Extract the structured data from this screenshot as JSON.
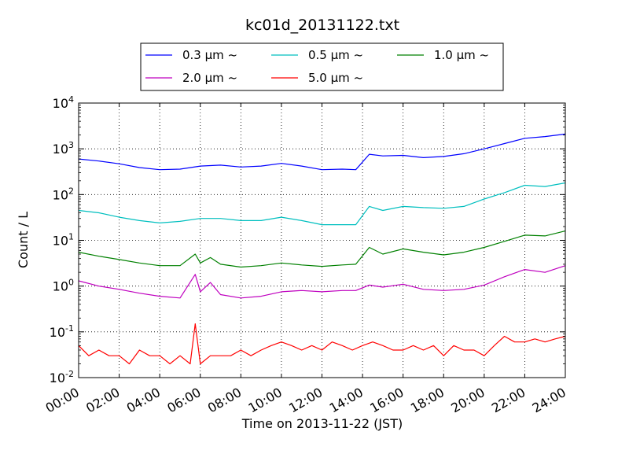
{
  "chart_data": {
    "type": "line",
    "title": "kc01d_20131122.txt",
    "xlabel": "Time on 2013-11-22 (JST)",
    "ylabel": "Count / L",
    "yscale": "log",
    "ylim": [
      0.01,
      10000
    ],
    "xlim": [
      "00:00",
      "24:00"
    ],
    "x_tick_labels": [
      "00:00",
      "02:00",
      "04:00",
      "06:00",
      "08:00",
      "10:00",
      "12:00",
      "14:00",
      "16:00",
      "18:00",
      "20:00",
      "22:00",
      "24:00"
    ],
    "y_tick_labels": [
      {
        "base": "10",
        "exp": "-2"
      },
      {
        "base": "10",
        "exp": "-1"
      },
      {
        "base": "10",
        "exp": "0"
      },
      {
        "base": "10",
        "exp": "1"
      },
      {
        "base": "10",
        "exp": "2"
      },
      {
        "base": "10",
        "exp": "3"
      },
      {
        "base": "10",
        "exp": "4"
      }
    ],
    "grid": true,
    "legend_position": "top-center",
    "series": [
      {
        "name": "0.3 μm ~",
        "color": "#0000ff",
        "x": [
          "00:00",
          "01:00",
          "02:00",
          "03:00",
          "04:00",
          "05:00",
          "06:00",
          "07:00",
          "08:00",
          "09:00",
          "10:00",
          "11:00",
          "12:00",
          "13:00",
          "13:40",
          "14:20",
          "15:00",
          "16:00",
          "17:00",
          "18:00",
          "19:00",
          "20:00",
          "21:00",
          "22:00",
          "23:00",
          "24:00"
        ],
        "values": [
          600,
          540,
          470,
          390,
          350,
          360,
          420,
          440,
          400,
          420,
          480,
          420,
          350,
          360,
          350,
          760,
          700,
          720,
          640,
          680,
          780,
          1000,
          1300,
          1700,
          1850,
          2100
        ]
      },
      {
        "name": "0.5 μm ~",
        "color": "#00bfbf",
        "x": [
          "00:00",
          "01:00",
          "02:00",
          "03:00",
          "04:00",
          "05:00",
          "06:00",
          "07:00",
          "08:00",
          "09:00",
          "10:00",
          "11:00",
          "12:00",
          "13:00",
          "13:40",
          "14:20",
          "15:00",
          "16:00",
          "17:00",
          "18:00",
          "19:00",
          "20:00",
          "21:00",
          "22:00",
          "23:00",
          "24:00"
        ],
        "values": [
          45,
          40,
          32,
          27,
          24,
          26,
          30,
          30,
          27,
          27,
          32,
          27,
          22,
          22,
          22,
          55,
          45,
          55,
          52,
          50,
          55,
          80,
          110,
          160,
          150,
          180
        ]
      },
      {
        "name": "1.0 μm ~",
        "color": "#008000",
        "x": [
          "00:00",
          "01:00",
          "02:00",
          "03:00",
          "04:00",
          "05:00",
          "05:45",
          "06:00",
          "06:30",
          "07:00",
          "08:00",
          "09:00",
          "10:00",
          "11:00",
          "12:00",
          "13:00",
          "13:40",
          "14:20",
          "15:00",
          "16:00",
          "17:00",
          "18:00",
          "19:00",
          "20:00",
          "21:00",
          "22:00",
          "23:00",
          "24:00"
        ],
        "values": [
          5.5,
          4.5,
          3.8,
          3.2,
          2.8,
          2.8,
          5.0,
          3.2,
          4.2,
          3.0,
          2.6,
          2.8,
          3.2,
          2.9,
          2.7,
          2.9,
          3.0,
          7.0,
          5.0,
          6.5,
          5.5,
          4.8,
          5.5,
          7.0,
          9.5,
          13.0,
          12.5,
          16.0
        ]
      },
      {
        "name": "2.0 μm ~",
        "color": "#bf00bf",
        "x": [
          "00:00",
          "01:00",
          "02:00",
          "03:00",
          "04:00",
          "05:00",
          "05:45",
          "06:00",
          "06:30",
          "07:00",
          "08:00",
          "09:00",
          "10:00",
          "11:00",
          "12:00",
          "13:00",
          "13:40",
          "14:20",
          "15:00",
          "16:00",
          "17:00",
          "18:00",
          "19:00",
          "20:00",
          "21:00",
          "22:00",
          "23:00",
          "24:00"
        ],
        "values": [
          1.3,
          1.0,
          0.85,
          0.7,
          0.6,
          0.55,
          1.8,
          0.75,
          1.2,
          0.65,
          0.55,
          0.6,
          0.75,
          0.8,
          0.75,
          0.8,
          0.8,
          1.05,
          0.95,
          1.1,
          0.85,
          0.8,
          0.85,
          1.05,
          1.6,
          2.3,
          2.0,
          2.8
        ]
      },
      {
        "name": "5.0 μm ~",
        "color": "#ff0000",
        "x": [
          "00:00",
          "00:30",
          "01:00",
          "01:30",
          "02:00",
          "02:30",
          "03:00",
          "03:30",
          "04:00",
          "04:30",
          "05:00",
          "05:30",
          "05:45",
          "06:00",
          "06:30",
          "07:00",
          "07:30",
          "08:00",
          "08:30",
          "09:00",
          "09:30",
          "10:00",
          "10:30",
          "11:00",
          "11:30",
          "12:00",
          "12:30",
          "13:00",
          "13:30",
          "14:00",
          "14:30",
          "15:00",
          "15:30",
          "16:00",
          "16:30",
          "17:00",
          "17:30",
          "18:00",
          "18:30",
          "19:00",
          "19:30",
          "20:00",
          "20:30",
          "21:00",
          "21:30",
          "22:00",
          "22:30",
          "23:00",
          "23:30",
          "24:00"
        ],
        "values": [
          0.05,
          0.03,
          0.04,
          0.03,
          0.03,
          0.02,
          0.04,
          0.03,
          0.03,
          0.02,
          0.03,
          0.02,
          0.15,
          0.02,
          0.03,
          0.03,
          0.03,
          0.04,
          0.03,
          0.04,
          0.05,
          0.06,
          0.05,
          0.04,
          0.05,
          0.04,
          0.06,
          0.05,
          0.04,
          0.05,
          0.06,
          0.05,
          0.04,
          0.04,
          0.05,
          0.04,
          0.05,
          0.03,
          0.05,
          0.04,
          0.04,
          0.03,
          0.05,
          0.08,
          0.06,
          0.06,
          0.07,
          0.06,
          0.07,
          0.08
        ]
      }
    ]
  }
}
